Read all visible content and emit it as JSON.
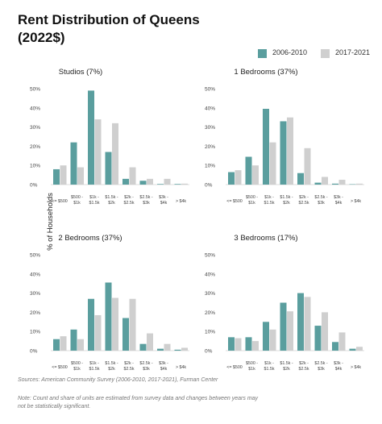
{
  "title": "Rent Distribution of Queens (2022$)",
  "ylabel": "% of Households",
  "colors": {
    "s2006": "#5a9e9e",
    "s2017": "#cfcfcf"
  },
  "legend": [
    {
      "name": "2006-2010",
      "color": "#5a9e9e"
    },
    {
      "name": "2017-2021",
      "color": "#cfcfcf"
    }
  ],
  "chart_data": [
    {
      "type": "bar",
      "title": "Studios (7%)",
      "categories": [
        "<= $500",
        "$500 - $1k",
        "$1k - $1.5k",
        "$1.5k - $2k",
        "$2k - $2.5k",
        "$2.5k - $3k",
        "$3k - $4k",
        "> $4k"
      ],
      "ylim": [
        0,
        50
      ],
      "yticks": [
        "0%",
        "10%",
        "20%",
        "30%",
        "40%",
        "50%"
      ],
      "series": [
        {
          "name": "2006-2010",
          "values": [
            8,
            22,
            49,
            17,
            3,
            2,
            0.3,
            0.3
          ]
        },
        {
          "name": "2017-2021",
          "values": [
            10,
            9,
            34,
            32,
            9,
            3,
            3,
            0.5
          ]
        }
      ]
    },
    {
      "type": "bar",
      "title": "1 Bedrooms (37%)",
      "categories": [
        "<= $500",
        "$500 - $1k",
        "$1k - $1.5k",
        "$1.5k - $2k",
        "$2k - $2.5k",
        "$2.5k - $3k",
        "$3k - $4k",
        "> $4k"
      ],
      "ylim": [
        0,
        50
      ],
      "yticks": [
        "0%",
        "10%",
        "20%",
        "30%",
        "40%",
        "50%"
      ],
      "series": [
        {
          "name": "2006-2010",
          "values": [
            6.5,
            14.5,
            39.5,
            33,
            6,
            1,
            0.5,
            0.2
          ]
        },
        {
          "name": "2017-2021",
          "values": [
            7.5,
            10,
            22,
            35,
            19,
            4,
            2.5,
            0.5
          ]
        }
      ]
    },
    {
      "type": "bar",
      "title": "2 Bedrooms (37%)",
      "categories": [
        "<= $500",
        "$500 - $1k",
        "$1k - $1.5k",
        "$1.5k - $2k",
        "$2k - $2.5k",
        "$2.5k - $3k",
        "$3k - $4k",
        "> $4k"
      ],
      "ylim": [
        0,
        50
      ],
      "yticks": [
        "0%",
        "10%",
        "20%",
        "30%",
        "40%",
        "50%"
      ],
      "series": [
        {
          "name": "2006-2010",
          "values": [
            6,
            11,
            27,
            35.5,
            17,
            3.5,
            1,
            0.5
          ]
        },
        {
          "name": "2017-2021",
          "values": [
            7.5,
            6,
            18.5,
            27.5,
            27,
            9,
            3.5,
            1.5
          ]
        }
      ]
    },
    {
      "type": "bar",
      "title": "3 Bedrooms (17%)",
      "categories": [
        "<= $500",
        "$500 - $1k",
        "$1k - $1.5k",
        "$1.5k - $2k",
        "$2k - $2.5k",
        "$2.5k - $3k",
        "$3k - $4k",
        "> $4k"
      ],
      "ylim": [
        0,
        50
      ],
      "yticks": [
        "0%",
        "10%",
        "20%",
        "30%",
        "40%",
        "50%"
      ],
      "series": [
        {
          "name": "2006-2010",
          "values": [
            7,
            7,
            15,
            25,
            30,
            13,
            4.5,
            1
          ]
        },
        {
          "name": "2017-2021",
          "values": [
            6.5,
            5,
            11,
            20.5,
            28,
            20,
            9.5,
            2
          ]
        }
      ]
    }
  ],
  "footer": {
    "sources": "Sources: American Community Survey (2006-2010, 2017-2021), Furman Center",
    "note": "Note: Count and share of units are estimated from survey data and changes between years may not be statistically significant."
  }
}
